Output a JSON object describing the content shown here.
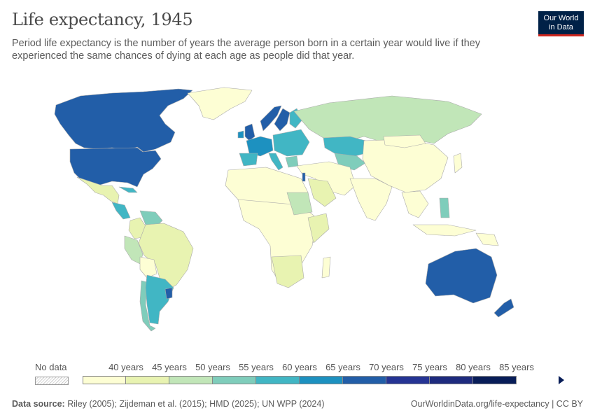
{
  "header": {
    "title": "Life expectancy, 1945",
    "subtitle": "Period life expectancy is the number of years the average person born in a certain year would live if they experienced the same chances of dying at each age as people did that year.",
    "logo_line1": "Our World",
    "logo_line2": "in Data"
  },
  "legend": {
    "no_data_label": "No data",
    "ticks": [
      "40 years",
      "45 years",
      "50 years",
      "55 years",
      "60 years",
      "65 years",
      "70 years",
      "75 years",
      "80 years",
      "85 years"
    ],
    "colors": [
      "#fdfed4",
      "#e8f3b1",
      "#c1e6b8",
      "#7fcdbb",
      "#41b6c4",
      "#1d91c0",
      "#225ea8",
      "#253494",
      "#1e2b7e",
      "#081d58"
    ]
  },
  "map_regions": [
    {
      "name": "Canada",
      "color": "#225ea8"
    },
    {
      "name": "United States",
      "color": "#225ea8"
    },
    {
      "name": "Greenland",
      "color": "#fdfed4"
    },
    {
      "name": "Mexico",
      "color": "#e8f3b1"
    },
    {
      "name": "Central America",
      "color": "#41b6c4"
    },
    {
      "name": "Caribbean",
      "color": "#41b6c4"
    },
    {
      "name": "Venezuela",
      "color": "#7fcdbb"
    },
    {
      "name": "Colombia",
      "color": "#e8f3b1"
    },
    {
      "name": "Brazil",
      "color": "#e8f3b1"
    },
    {
      "name": "Peru",
      "color": "#c1e6b8"
    },
    {
      "name": "Bolivia",
      "color": "#fdfed4"
    },
    {
      "name": "Chile",
      "color": "#7fcdbb"
    },
    {
      "name": "Argentina",
      "color": "#41b6c4"
    },
    {
      "name": "Uruguay",
      "color": "#225ea8"
    },
    {
      "name": "Norway",
      "color": "#225ea8"
    },
    {
      "name": "Sweden",
      "color": "#225ea8"
    },
    {
      "name": "Finland",
      "color": "#41b6c4"
    },
    {
      "name": "United Kingdom",
      "color": "#225ea8"
    },
    {
      "name": "Ireland",
      "color": "#1d91c0"
    },
    {
      "name": "Western Europe",
      "color": "#1d91c0"
    },
    {
      "name": "Spain",
      "color": "#41b6c4"
    },
    {
      "name": "Italy",
      "color": "#41b6c4"
    },
    {
      "name": "Eastern Europe",
      "color": "#41b6c4"
    },
    {
      "name": "Greece",
      "color": "#7fcdbb"
    },
    {
      "name": "Russia",
      "color": "#c1e6b8"
    },
    {
      "name": "Kazakhstan",
      "color": "#41b6c4"
    },
    {
      "name": "Central Asia",
      "color": "#7fcdbb"
    },
    {
      "name": "Middle East",
      "color": "#fdfed4"
    },
    {
      "name": "Saudi Arabia",
      "color": "#e8f3b1"
    },
    {
      "name": "Israel",
      "color": "#225ea8"
    },
    {
      "name": "India",
      "color": "#fdfed4"
    },
    {
      "name": "China",
      "color": "#fdfed4"
    },
    {
      "name": "Mongolia",
      "color": "#fdfed4"
    },
    {
      "name": "Japan",
      "color": "#fdfed4"
    },
    {
      "name": "Southeast Asia",
      "color": "#fdfed4"
    },
    {
      "name": "Philippines",
      "color": "#7fcdbb"
    },
    {
      "name": "Indonesia",
      "color": "#fdfed4"
    },
    {
      "name": "North Africa",
      "color": "#fdfed4"
    },
    {
      "name": "Sub-Saharan Africa",
      "color": "#fdfed4"
    },
    {
      "name": "Sudan",
      "color": "#c1e6b8"
    },
    {
      "name": "East Africa",
      "color": "#e8f3b1"
    },
    {
      "name": "Southern Africa",
      "color": "#e8f3b1"
    },
    {
      "name": "Madagascar",
      "color": "#fdfed4"
    },
    {
      "name": "Australia",
      "color": "#225ea8"
    },
    {
      "name": "New Zealand",
      "color": "#225ea8"
    },
    {
      "name": "Papua New Guinea",
      "color": "#fdfed4"
    }
  ],
  "footer": {
    "source_label": "Data source:",
    "source_text": "Riley (2005); Zijdeman et al. (2015); HMD (2025); UN WPP (2024)",
    "url_text": "OurWorldinData.org/life-expectancy | CC BY"
  }
}
